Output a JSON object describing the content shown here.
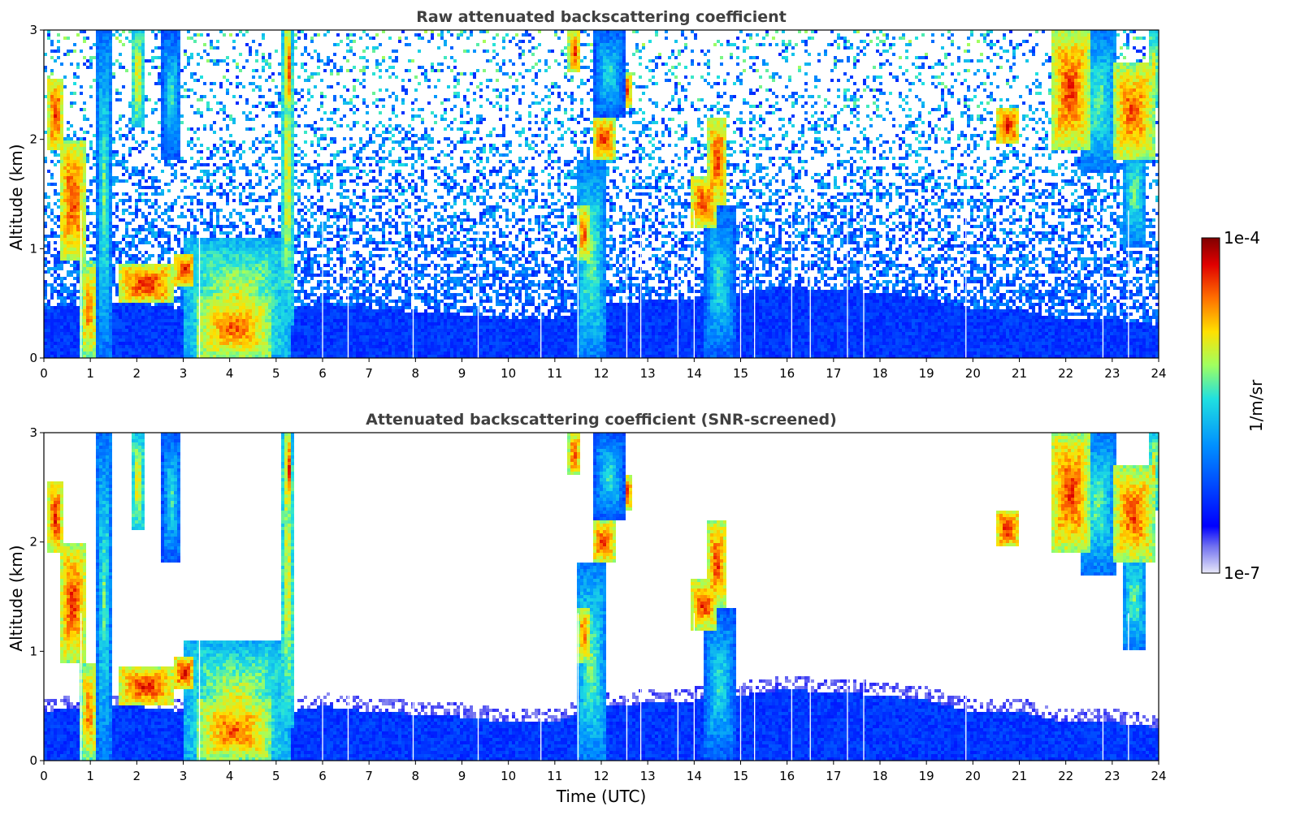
{
  "chart_data": [
    {
      "type": "heatmap",
      "title": "Raw attenuated backscattering coefficient",
      "xlabel": "",
      "ylabel": "Altitude (km)",
      "xlim": [
        0,
        24
      ],
      "ylim": [
        0,
        3
      ],
      "xticks": [
        "0",
        "1",
        "2",
        "3",
        "4",
        "5",
        "6",
        "7",
        "8",
        "9",
        "10",
        "11",
        "12",
        "13",
        "14",
        "15",
        "16",
        "17",
        "18",
        "19",
        "20",
        "21",
        "22",
        "23",
        "24"
      ],
      "yticks": [
        "0",
        "1",
        "2",
        "3"
      ],
      "screened": false
    },
    {
      "type": "heatmap",
      "title": "Attenuated backscattering coefficient (SNR-screened)",
      "xlabel": "Time (UTC)",
      "ylabel": "Altitude (km)",
      "xlim": [
        0,
        24
      ],
      "ylim": [
        0,
        3
      ],
      "xticks": [
        "0",
        "1",
        "2",
        "3",
        "4",
        "5",
        "6",
        "7",
        "8",
        "9",
        "10",
        "11",
        "12",
        "13",
        "14",
        "15",
        "16",
        "17",
        "18",
        "19",
        "20",
        "21",
        "22",
        "23",
        "24"
      ],
      "yticks": [
        "0",
        "1",
        "2",
        "3"
      ],
      "screened": true
    }
  ],
  "colorbar": {
    "label": "1/m/sr",
    "max_label": "1e-4",
    "min_label": "1e-7",
    "scale": "log",
    "colormap": [
      "#e8e8f8",
      "#0000ff",
      "#00a0ff",
      "#20e0e0",
      "#a0ff60",
      "#ffe000",
      "#ff7000",
      "#e00000",
      "#800000"
    ]
  },
  "features": {
    "boundary_layer": [
      [
        0,
        0.45
      ],
      [
        1,
        0.5
      ],
      [
        2,
        0.5
      ],
      [
        3,
        0.45
      ],
      [
        5.3,
        0.45
      ],
      [
        6,
        0.5
      ],
      [
        7,
        0.45
      ],
      [
        9,
        0.4
      ],
      [
        10,
        0.35
      ],
      [
        11,
        0.35
      ],
      [
        12,
        0.5
      ],
      [
        14,
        0.55
      ],
      [
        16,
        0.65
      ],
      [
        18,
        0.6
      ],
      [
        19,
        0.55
      ],
      [
        20,
        0.45
      ],
      [
        21,
        0.45
      ],
      [
        22,
        0.35
      ],
      [
        23,
        0.35
      ],
      [
        24,
        0.3
      ]
    ],
    "clouds": [
      {
        "t0": 0.1,
        "t1": 0.4,
        "z0": 1.9,
        "z1": 2.55,
        "v": 0.92
      },
      {
        "t0": 0.35,
        "t1": 0.9,
        "z0": 0.9,
        "z1": 2.0,
        "v": 0.9
      },
      {
        "t0": 0.8,
        "t1": 1.15,
        "z0": 0,
        "z1": 0.9,
        "v": 0.85
      },
      {
        "t0": 1.15,
        "t1": 1.45,
        "z0": 0,
        "z1": 3.0,
        "v": 0.6
      },
      {
        "t0": 1.9,
        "t1": 2.15,
        "z0": 2.1,
        "z1": 3.0,
        "v": 0.75
      },
      {
        "t0": 1.6,
        "t1": 2.8,
        "z0": 0.5,
        "z1": 0.85,
        "v": 0.92
      },
      {
        "t0": 2.55,
        "t1": 2.95,
        "z0": 1.8,
        "z1": 3.0,
        "v": 0.55
      },
      {
        "t0": 2.8,
        "t1": 3.25,
        "z0": 0.65,
        "z1": 0.95,
        "v": 0.93
      },
      {
        "t0": 3.0,
        "t1": 5.3,
        "z0": 0,
        "z1": 1.1,
        "v": 0.7
      },
      {
        "t0": 3.3,
        "t1": 4.9,
        "z0": 0,
        "z1": 0.55,
        "v": 0.86
      },
      {
        "t0": 5.1,
        "t1": 5.4,
        "z0": 0.3,
        "z1": 3.0,
        "v": 0.72
      },
      {
        "t0": 5.2,
        "t1": 5.35,
        "z0": 2.3,
        "z1": 3.0,
        "v": 0.9
      },
      {
        "t0": 11.3,
        "t1": 11.55,
        "z0": 2.6,
        "z1": 3.0,
        "v": 0.9
      },
      {
        "t0": 11.45,
        "t1": 12.1,
        "z0": 0,
        "z1": 1.8,
        "v": 0.62
      },
      {
        "t0": 11.5,
        "t1": 11.75,
        "z0": 0.9,
        "z1": 1.4,
        "v": 0.88
      },
      {
        "t0": 11.8,
        "t1": 12.3,
        "z0": 1.8,
        "z1": 2.2,
        "v": 0.9
      },
      {
        "t0": 12.5,
        "t1": 12.65,
        "z0": 2.3,
        "z1": 2.6,
        "v": 0.93
      },
      {
        "t0": 11.85,
        "t1": 12.5,
        "z0": 2.2,
        "z1": 3.0,
        "v": 0.55
      },
      {
        "t0": 13.9,
        "t1": 14.5,
        "z0": 1.2,
        "z1": 1.65,
        "v": 0.9
      },
      {
        "t0": 14.3,
        "t1": 14.7,
        "z0": 1.4,
        "z1": 2.2,
        "v": 0.9
      },
      {
        "t0": 14.2,
        "t1": 14.9,
        "z0": 0,
        "z1": 1.4,
        "v": 0.55
      },
      {
        "t0": 20.5,
        "t1": 21.0,
        "z0": 1.95,
        "z1": 2.3,
        "v": 0.93
      },
      {
        "t0": 21.7,
        "t1": 22.5,
        "z0": 1.9,
        "z1": 3.0,
        "v": 0.9
      },
      {
        "t0": 22.3,
        "t1": 23.1,
        "z0": 1.7,
        "z1": 3.0,
        "v": 0.6
      },
      {
        "t0": 23.0,
        "t1": 23.9,
        "z0": 1.8,
        "z1": 2.7,
        "v": 0.88
      },
      {
        "t0": 23.2,
        "t1": 23.75,
        "z0": 1.0,
        "z1": 2.0,
        "v": 0.6
      },
      {
        "t0": 23.8,
        "t1": 24.0,
        "z0": 2.3,
        "z1": 3.0,
        "v": 0.75
      }
    ],
    "gap_lines": [
      0.8,
      3.35,
      6.0,
      6.55,
      7.95,
      9.35,
      10.7,
      11.5,
      12.55,
      12.85,
      13.65,
      14.0,
      15.0,
      15.3,
      16.1,
      16.5,
      17.3,
      17.65,
      19.85,
      22.8,
      23.35
    ]
  }
}
